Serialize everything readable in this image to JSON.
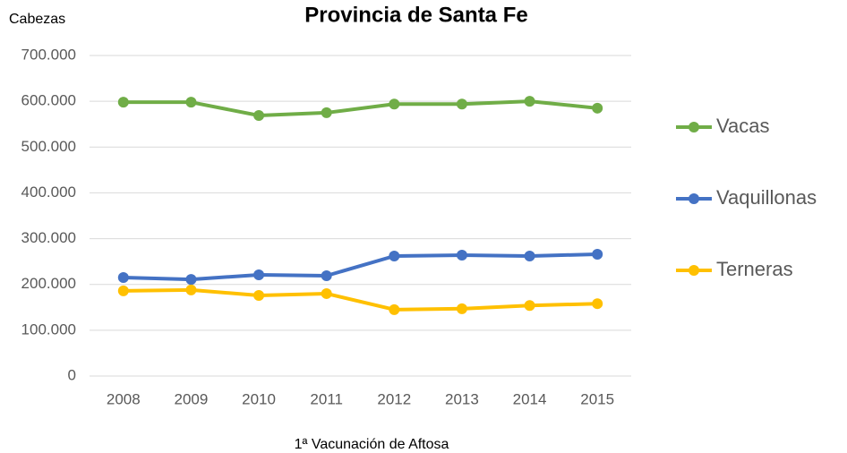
{
  "chart_data": {
    "type": "line",
    "title": "Provincia de Santa Fe",
    "y_label": "Cabezas",
    "x_label": "1ª Vacunación de Aftosa",
    "categories": [
      "2008",
      "2009",
      "2010",
      "2011",
      "2012",
      "2013",
      "2014",
      "2015"
    ],
    "series": [
      {
        "name": "Vacas",
        "color": "#70ad47",
        "values": [
          598000,
          598000,
          569000,
          575000,
          594000,
          594000,
          600000,
          585000
        ]
      },
      {
        "name": "Vaquillonas",
        "color": "#4472c4",
        "values": [
          215000,
          211000,
          221000,
          219000,
          262000,
          264000,
          262000,
          266000
        ]
      },
      {
        "name": "Terneras",
        "color": "#ffc000",
        "values": [
          186000,
          188000,
          176000,
          180000,
          145000,
          147000,
          154000,
          158000
        ]
      }
    ],
    "ylim": [
      0,
      700000
    ],
    "yticks": [
      0,
      {
        "value": 100000,
        "label": "100.000"
      },
      {
        "value": 200000,
        "label": "200.000"
      },
      {
        "value": 300000,
        "label": "300.000"
      },
      {
        "value": 400000,
        "label": "400.000"
      },
      {
        "value": 500000,
        "label": "500.000"
      },
      {
        "value": 600000,
        "label": "600.000"
      },
      {
        "value": 700000,
        "label": "700.000"
      }
    ],
    "grid": true,
    "legend": "right"
  }
}
